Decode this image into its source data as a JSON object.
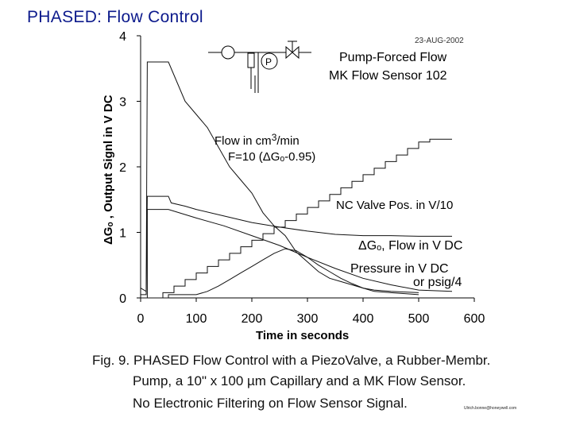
{
  "slide_title": "PHASED: Flow Control",
  "chart_data": {
    "type": "line",
    "date_label": "23-AUG-2002",
    "legend_title_line1": "Pump-Forced Flow",
    "legend_title_line2": "MK Flow Sensor 102",
    "xlabel": "Time in seconds",
    "ylabel": "ΔGₒ , Output Signl in V DC",
    "xlim": [
      0,
      600
    ],
    "ylim": [
      0,
      4
    ],
    "x_ticks": [
      "0",
      "100",
      "200",
      "300",
      "400",
      "500",
      "600"
    ],
    "y_ticks": [
      "0",
      "1",
      "2",
      "3",
      "4"
    ],
    "annotations": {
      "flow_line1": "Flow in cm3/min",
      "flow_line2": "F=10 (ΔGₒ-0.95)",
      "valve": "NC Valve Pos. in V/10",
      "signal": "ΔGₒ, Flow in V DC",
      "pressure_line1": "Pressure in V DC",
      "pressure_line2": "or psig/4"
    },
    "schematic_pump_label": "P",
    "series": [
      {
        "values": [
          [
            0,
            0.15
          ],
          [
            10,
            0.1
          ],
          [
            12,
            3.6
          ],
          [
            50,
            3.6
          ],
          [
            60,
            3.4
          ],
          [
            80,
            3.0
          ],
          [
            100,
            2.8
          ],
          [
            120,
            2.6
          ],
          [
            140,
            2.3
          ],
          [
            160,
            2.0
          ],
          [
            180,
            1.8
          ],
          [
            200,
            1.6
          ],
          [
            220,
            1.3
          ],
          [
            240,
            1.1
          ],
          [
            260,
            0.95
          ],
          [
            280,
            0.7
          ],
          [
            300,
            0.55
          ],
          [
            320,
            0.4
          ],
          [
            340,
            0.3
          ],
          [
            360,
            0.25
          ],
          [
            380,
            0.2
          ],
          [
            400,
            0.15
          ],
          [
            420,
            0.12
          ],
          [
            450,
            0.1
          ],
          [
            500,
            0.08
          ]
        ]
      },
      {
        "values": [
          [
            0,
            0.05
          ],
          [
            10,
            0.05
          ],
          [
            12,
            1.55
          ],
          [
            50,
            1.55
          ],
          [
            55,
            1.45
          ],
          [
            80,
            1.4
          ],
          [
            100,
            1.35
          ],
          [
            150,
            1.25
          ],
          [
            200,
            1.15
          ],
          [
            250,
            1.08
          ],
          [
            300,
            1.02
          ],
          [
            350,
            0.97
          ],
          [
            400,
            0.95
          ],
          [
            450,
            0.95
          ],
          [
            500,
            0.94
          ],
          [
            560,
            0.94
          ]
        ]
      },
      {
        "values": [
          [
            0,
            0.0
          ],
          [
            12,
            0.0
          ],
          [
            12,
            1.35
          ],
          [
            50,
            1.35
          ],
          [
            100,
            1.22
          ],
          [
            150,
            1.1
          ],
          [
            200,
            0.95
          ],
          [
            250,
            0.8
          ],
          [
            300,
            0.62
          ],
          [
            350,
            0.45
          ],
          [
            400,
            0.3
          ],
          [
            450,
            0.2
          ],
          [
            500,
            0.12
          ],
          [
            560,
            0.1
          ]
        ]
      },
      {
        "values": [
          [
            0,
            0.0
          ],
          [
            40,
            0.0
          ],
          [
            40,
            0.08
          ],
          [
            60,
            0.08
          ],
          [
            60,
            0.18
          ],
          [
            80,
            0.18
          ],
          [
            80,
            0.28
          ],
          [
            100,
            0.28
          ],
          [
            100,
            0.38
          ],
          [
            120,
            0.38
          ],
          [
            120,
            0.48
          ],
          [
            140,
            0.48
          ],
          [
            140,
            0.58
          ],
          [
            160,
            0.58
          ],
          [
            160,
            0.68
          ],
          [
            180,
            0.68
          ],
          [
            180,
            0.78
          ],
          [
            200,
            0.78
          ],
          [
            200,
            0.88
          ],
          [
            220,
            0.88
          ],
          [
            220,
            0.98
          ],
          [
            240,
            0.98
          ],
          [
            240,
            1.08
          ],
          [
            260,
            1.08
          ],
          [
            260,
            1.18
          ],
          [
            280,
            1.18
          ],
          [
            280,
            1.28
          ],
          [
            300,
            1.28
          ],
          [
            300,
            1.38
          ],
          [
            320,
            1.38
          ],
          [
            320,
            1.48
          ],
          [
            340,
            1.48
          ],
          [
            340,
            1.58
          ],
          [
            360,
            1.58
          ],
          [
            360,
            1.68
          ],
          [
            380,
            1.68
          ],
          [
            380,
            1.78
          ],
          [
            400,
            1.78
          ],
          [
            400,
            1.88
          ],
          [
            420,
            1.88
          ],
          [
            420,
            1.98
          ],
          [
            440,
            1.98
          ],
          [
            440,
            2.08
          ],
          [
            460,
            2.08
          ],
          [
            460,
            2.18
          ],
          [
            480,
            2.18
          ],
          [
            480,
            2.28
          ],
          [
            500,
            2.28
          ],
          [
            500,
            2.38
          ],
          [
            520,
            2.38
          ],
          [
            520,
            2.42
          ],
          [
            560,
            2.42
          ]
        ]
      },
      {
        "values": [
          [
            0,
            0.0
          ],
          [
            50,
            0.0
          ],
          [
            50,
            0.05
          ],
          [
            100,
            0.05
          ],
          [
            120,
            0.1
          ],
          [
            140,
            0.18
          ],
          [
            160,
            0.28
          ],
          [
            180,
            0.38
          ],
          [
            200,
            0.48
          ],
          [
            220,
            0.58
          ],
          [
            240,
            0.68
          ],
          [
            260,
            0.75
          ],
          [
            280,
            0.72
          ],
          [
            300,
            0.62
          ],
          [
            320,
            0.5
          ],
          [
            340,
            0.4
          ],
          [
            360,
            0.3
          ],
          [
            380,
            0.22
          ],
          [
            400,
            0.15
          ],
          [
            420,
            0.1
          ],
          [
            450,
            0.08
          ],
          [
            500,
            0.05
          ]
        ]
      }
    ]
  },
  "caption": {
    "line1": "Fig. 9. PHASED Flow Control with a PiezoValve, a Rubber-Membr.",
    "line2": "Pump, a 10\" x 100 µm Capillary and a MK Flow Sensor.",
    "line3": "No Electronic Filtering on Flow Sensor Signal."
  },
  "footer_email": "Ulrich.bonne@honeywell.com"
}
